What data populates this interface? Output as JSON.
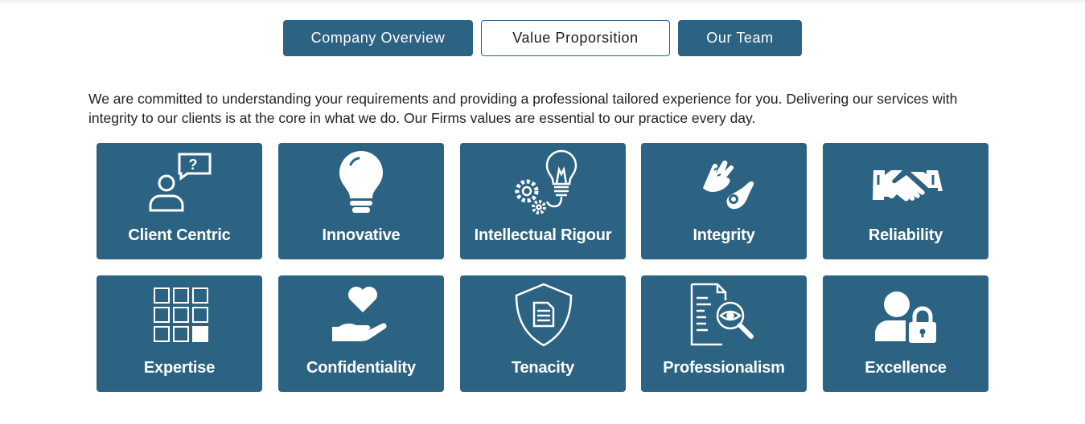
{
  "tabs": [
    {
      "label": "Company Overview",
      "active": false
    },
    {
      "label": "Value Proporsition",
      "active": true
    },
    {
      "label": "Our Team",
      "active": false
    }
  ],
  "intro": "We are committed to understanding your requirements and providing a professional tailored experience for you. Delivering our services with integrity to our clients is at the core in what we do. Our Firms values are essential to our practice every day.",
  "values": [
    {
      "label": "Client Centric",
      "icon": "person-question-icon"
    },
    {
      "label": "Innovative",
      "icon": "lightbulb-icon"
    },
    {
      "label": "Intellectual Rigour",
      "icon": "gears-lightbulb-icon"
    },
    {
      "label": "Integrity",
      "icon": "sign-language-hands-icon"
    },
    {
      "label": "Reliability",
      "icon": "handshake-icon"
    },
    {
      "label": "Expertise",
      "icon": "grid-squares-icon"
    },
    {
      "label": "Confidentiality",
      "icon": "heart-hand-icon"
    },
    {
      "label": "Tenacity",
      "icon": "shield-document-icon"
    },
    {
      "label": "Professionalism",
      "icon": "document-magnifier-icon"
    },
    {
      "label": "Excellence",
      "icon": "user-lock-icon"
    }
  ],
  "colors": {
    "primary": "#2d6382",
    "text": "#222222",
    "background": "#ffffff"
  }
}
